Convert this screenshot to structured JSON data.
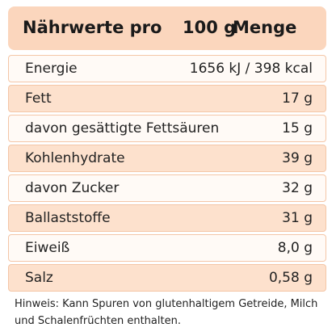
{
  "header": {
    "title": "Nährwerte pro",
    "amount": "100 g",
    "column": "Menge"
  },
  "table": {
    "rows": [
      [
        "Energie",
        "1656 kJ / 398 kcal"
      ],
      [
        "Fett",
        "17 g"
      ],
      [
        "davon gesättigte Fettsäuren",
        "15 g"
      ],
      [
        "Kohlenhydrate",
        "39 g"
      ],
      [
        "davon Zucker",
        "32 g"
      ],
      [
        "Ballaststoffe",
        "31 g"
      ],
      [
        "Eiweiß",
        "8,0 g"
      ],
      [
        "Salz",
        "0,58 g"
      ]
    ]
  },
  "note": "Hinweis: Kann Spuren von glutenhaltigem Getreide, Milch und Schalenfrüchten enthalten."
}
